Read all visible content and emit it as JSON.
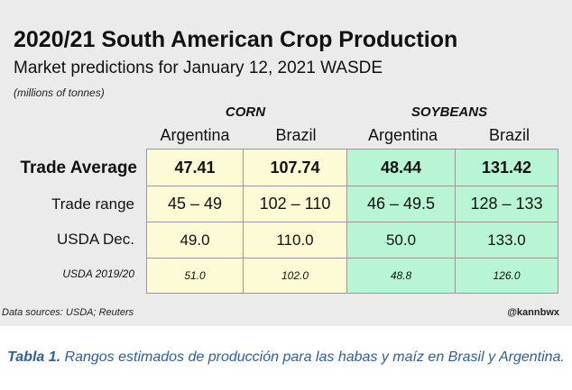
{
  "header": {
    "title": "2020/21 South American Crop Production",
    "subtitle": "Market predictions for January 12, 2021 WASDE",
    "units": "(millions of tonnes)"
  },
  "footer": {
    "source": "Data sources: USDA; Reuters",
    "handle": "@kannbwx"
  },
  "caption": {
    "lead": "Tabla 1.",
    "text": " Rangos estimados de producción para las habas y maíz en Brasil y Argentina."
  },
  "colors": {
    "corn": "#fdfbd6",
    "soybeans": "#b8f5d4",
    "caption": "#2c5f9e"
  },
  "chart_data": {
    "type": "table",
    "groups": [
      {
        "name": "CORN",
        "columns": [
          "Argentina",
          "Brazil"
        ]
      },
      {
        "name": "SOYBEANS",
        "columns": [
          "Argentina",
          "Brazil"
        ]
      }
    ],
    "columns": [
      "Argentina",
      "Brazil",
      "Argentina",
      "Brazil"
    ],
    "rows": [
      {
        "label": "Trade Average",
        "values": [
          "47.41",
          "107.74",
          "48.44",
          "131.42"
        ]
      },
      {
        "label": "Trade range",
        "values": [
          "45 – 49",
          "102 – 110",
          "46 – 49.5",
          "128 – 133"
        ]
      },
      {
        "label": "USDA Dec.",
        "values": [
          "49.0",
          "110.0",
          "50.0",
          "133.0"
        ]
      },
      {
        "label": "USDA 2019/20",
        "values": [
          "51.0",
          "102.0",
          "48.8",
          "126.0"
        ]
      }
    ]
  }
}
